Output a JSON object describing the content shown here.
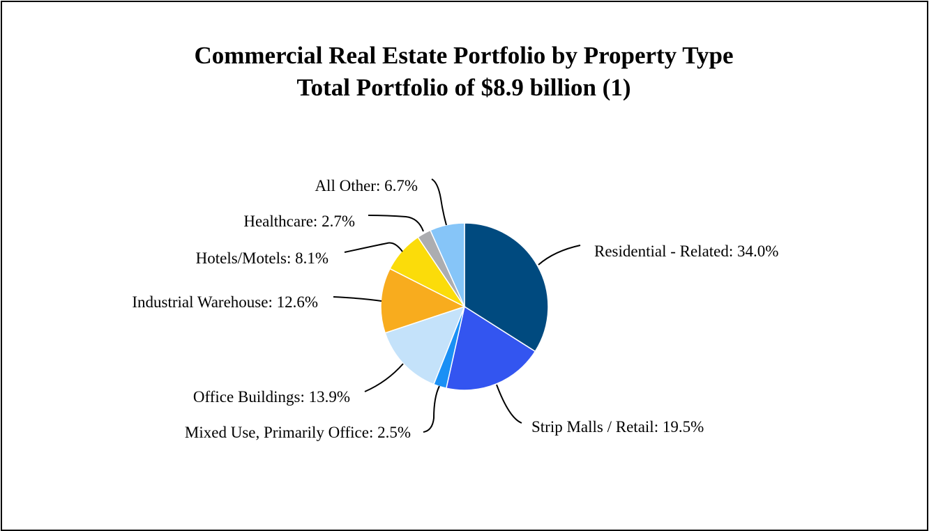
{
  "chart_data": {
    "type": "pie",
    "title": "Commercial Real Estate Portfolio by Property Type",
    "subtitle": "Total Portfolio of $8.9 billion (1)",
    "slices": [
      {
        "label": "Residential - Related",
        "value": 34.0,
        "display": "Residential - Related: 34.0%",
        "color": "#004a7f"
      },
      {
        "label": "Strip Malls / Retail",
        "value": 19.5,
        "display": "Strip Malls / Retail: 19.5%",
        "color": "#3355f0"
      },
      {
        "label": "Mixed Use, Primarily Office",
        "value": 2.5,
        "display": "Mixed Use, Primarily Office: 2.5%",
        "color": "#1a90f5"
      },
      {
        "label": "Office Buildings",
        "value": 13.9,
        "display": "Office Buildings: 13.9%",
        "color": "#c4e2fa"
      },
      {
        "label": "Industrial Warehouse",
        "value": 12.6,
        "display": "Industrial Warehouse: 12.6%",
        "color": "#f8ac1e"
      },
      {
        "label": "Hotels/Motels",
        "value": 8.1,
        "display": "Hotels/Motels: 8.1%",
        "color": "#fbdc0a"
      },
      {
        "label": "Healthcare",
        "value": 2.7,
        "display": "Healthcare: 2.7%",
        "color": "#acadb0"
      },
      {
        "label": "All Other",
        "value": 6.7,
        "display": "All Other: 6.7%",
        "color": "#86c5f8"
      }
    ]
  }
}
